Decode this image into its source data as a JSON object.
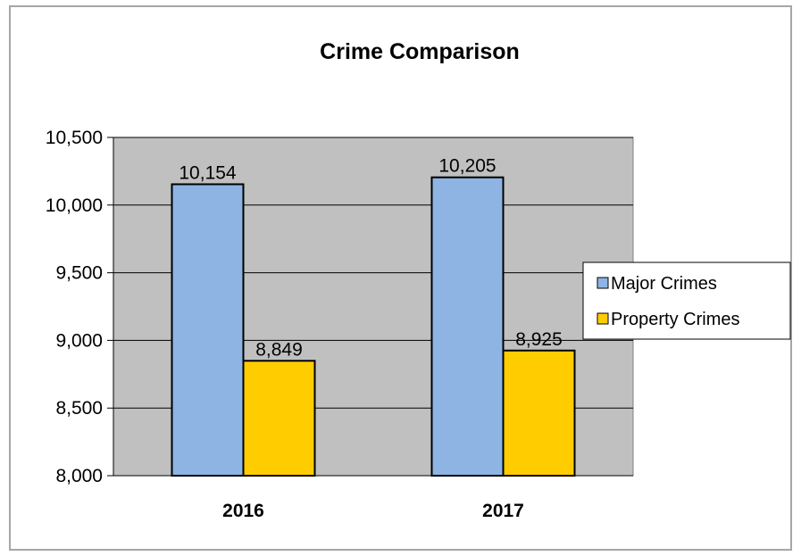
{
  "chart_data": {
    "type": "bar",
    "title": "Crime Comparison",
    "xlabel": "",
    "ylabel": "",
    "categories": [
      "2016",
      "2017"
    ],
    "series": [
      {
        "name": "Major Crimes",
        "values": [
          10154,
          10205
        ],
        "color": "#8eb4e3",
        "labels": [
          "10,154",
          "10,205"
        ]
      },
      {
        "name": "Property Crimes",
        "values": [
          8849,
          8925
        ],
        "color": "#ffcc00",
        "labels": [
          "8,849",
          "8,925"
        ]
      }
    ],
    "ylim": [
      8000,
      10500
    ],
    "yticks": [
      8000,
      8500,
      9000,
      9500,
      10000,
      10500
    ],
    "ytick_labels": [
      "8,000",
      "8,500",
      "9,000",
      "9,500",
      "10,000",
      "10,500"
    ],
    "grid": true,
    "plot_background": "#c0c0c0",
    "legend_position": "right"
  }
}
